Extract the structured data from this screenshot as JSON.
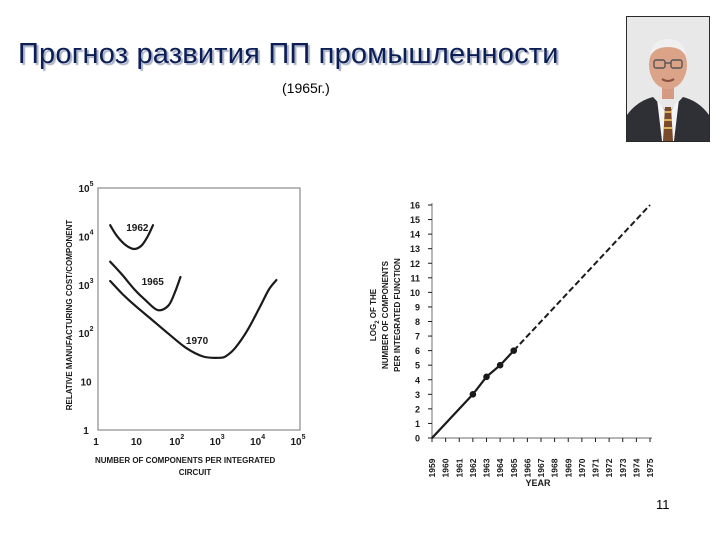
{
  "slide": {
    "title": "Прогноз развития ПП промышленности",
    "subtitle": "(1965г.)",
    "page_number": "11"
  },
  "portrait": {
    "icon": "portrait-photo"
  },
  "colors": {
    "title": "#0b1e55",
    "title_shadow": "#a9b0c4",
    "ink": "#1a1a1a",
    "frame": "#8a8a8a"
  },
  "chart_data": [
    {
      "type": "line",
      "xlabel": "NUMBER OF COMPONENTS PER INTEGRATED CIRCUIT",
      "ylabel": "RELATIVE MANUFACTURING COST/COMPONENT",
      "xscale": "log",
      "yscale": "log",
      "xlim": [
        1,
        100000
      ],
      "ylim": [
        1,
        100000
      ],
      "x_ticks": [
        {
          "value": 1,
          "base": "1",
          "exp": ""
        },
        {
          "value": 10,
          "base": "10",
          "exp": ""
        },
        {
          "value": 100,
          "base": "10",
          "exp": "2"
        },
        {
          "value": 1000,
          "base": "10",
          "exp": "3"
        },
        {
          "value": 10000,
          "base": "10",
          "exp": "4"
        },
        {
          "value": 100000,
          "base": "10",
          "exp": "5"
        }
      ],
      "y_ticks": [
        {
          "value": 1,
          "base": "1",
          "exp": ""
        },
        {
          "value": 10,
          "base": "10",
          "exp": ""
        },
        {
          "value": 100,
          "base": "10",
          "exp": "2"
        },
        {
          "value": 1000,
          "base": "10",
          "exp": "3"
        },
        {
          "value": 10000,
          "base": "10",
          "exp": "4"
        },
        {
          "value": 100000,
          "base": "10",
          "exp": "5"
        }
      ],
      "series": [
        {
          "name": "1962",
          "label_at": [
            5,
            13000
          ],
          "x": [
            2,
            3,
            5,
            8,
            12,
            17,
            23
          ],
          "y": [
            17000,
            10000,
            6500,
            5500,
            6500,
            10000,
            17000
          ]
        },
        {
          "name": "1965",
          "label_at": [
            12,
            1000
          ],
          "x": [
            2,
            4,
            8,
            15,
            30,
            55,
            80,
            110
          ],
          "y": [
            3000,
            1600,
            800,
            480,
            300,
            370,
            700,
            1450
          ]
        },
        {
          "name": "1970",
          "label_at": [
            150,
            60
          ],
          "x": [
            2,
            4,
            8,
            20,
            50,
            150,
            400,
            1000,
            1500,
            2500,
            5000,
            10000,
            17000,
            26000
          ],
          "y": [
            1200,
            650,
            380,
            200,
            105,
            50,
            33,
            31,
            34,
            50,
            115,
            340,
            800,
            1250
          ]
        }
      ]
    },
    {
      "type": "line",
      "xlabel": "YEAR",
      "ylabel": "LOG2 OF THE NUMBER OF COMPONENTS PER INTEGRATED FUNCTION",
      "ylabel_lines": [
        "LOG",
        "2",
        " OF THE",
        "NUMBER OF COMPONENTS",
        "PER INTEGRATED FUNCTION"
      ],
      "xlim": [
        1959,
        1975
      ],
      "ylim": [
        0,
        16
      ],
      "years": [
        "1959",
        "1960",
        "1961",
        "1962",
        "1963",
        "1964",
        "1965",
        "1966",
        "1967",
        "1968",
        "1969",
        "1970",
        "1971",
        "1972",
        "1973",
        "1974",
        "1975"
      ],
      "y_ticks": [
        0,
        1,
        2,
        3,
        4,
        5,
        6,
        7,
        8,
        9,
        10,
        11,
        12,
        13,
        14,
        15,
        16
      ],
      "measured": {
        "x": [
          1959,
          1962,
          1963,
          1964,
          1965
        ],
        "y": [
          0,
          3,
          4.2,
          5,
          6
        ],
        "markers": [
          1962,
          1963,
          1964,
          1965
        ]
      },
      "projected": {
        "x": [
          1965,
          1975
        ],
        "y": [
          6,
          16
        ],
        "style": "dashed"
      }
    }
  ]
}
